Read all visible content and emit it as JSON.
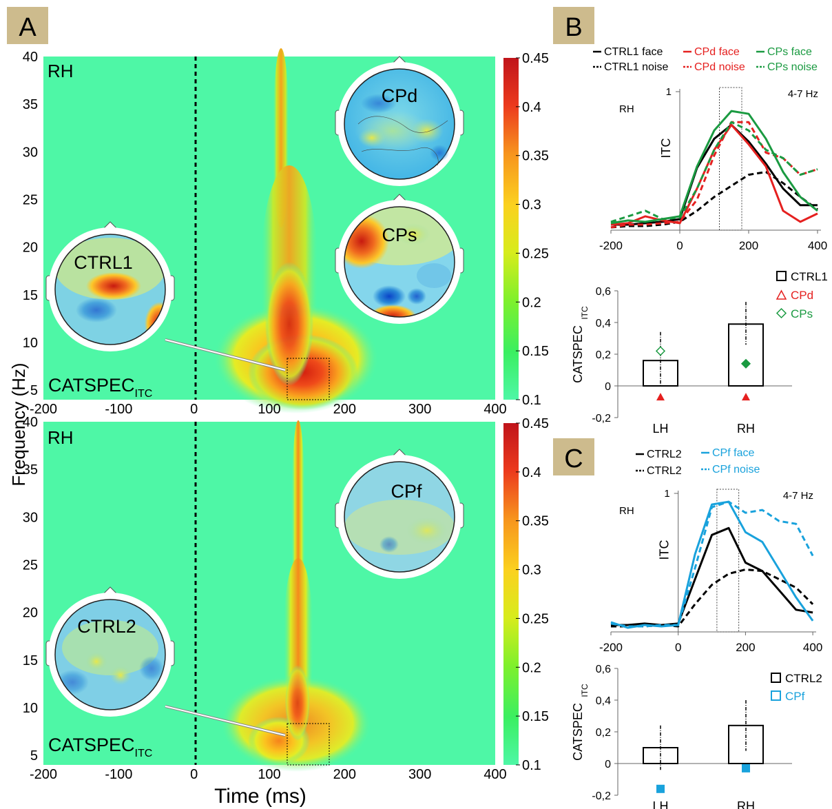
{
  "panels": {
    "a": "A",
    "b": "B",
    "c": "C"
  },
  "heatmap_axes": {
    "ylabel": "Frequency (Hz)",
    "xlabel": "Time (ms)"
  },
  "heatmap_top": {
    "hemisphere": "RH",
    "catspec": "CATSPEC",
    "catspec_sub": "ITC",
    "maps": [
      "CPd",
      "CPs",
      "CTRL1"
    ]
  },
  "heatmap_bottom": {
    "hemisphere": "RH",
    "catspec": "CATSPEC",
    "catspec_sub": "ITC",
    "maps": [
      "CPf",
      "CTRL2"
    ]
  },
  "colors": {
    "ctrl": "#000000",
    "cpd": "#e5201f",
    "cps": "#1a9a41",
    "cpf": "#19a2dc",
    "panel_bg": "#cdbb8d",
    "heat_base": "#4ef7a6"
  },
  "chart_data": [
    {
      "type": "heatmap",
      "title": "",
      "xlabel": "Time (ms)",
      "ylabel": "Frequency (Hz)",
      "xlim": [
        -200,
        400
      ],
      "ylim": [
        4,
        40
      ],
      "x_ticks": [
        -200,
        -100,
        0,
        100,
        200,
        300,
        400
      ],
      "y_ticks": [
        5,
        10,
        15,
        20,
        25,
        30,
        35,
        40
      ],
      "colorbar": {
        "range": [
          0.1,
          0.45
        ],
        "ticks": [
          "0.45",
          "0.4",
          "0.35",
          "0.3",
          "0.25",
          "0.2",
          "0.15",
          "0.1"
        ]
      },
      "stimulus_onset_ms": 0,
      "window_ms": [
        120,
        175
      ],
      "window_hz": [
        4,
        8.5
      ],
      "label": "RH"
    },
    {
      "type": "heatmap",
      "title": "",
      "xlabel": "Time (ms)",
      "ylabel": "Frequency (Hz)",
      "xlim": [
        -200,
        400
      ],
      "ylim": [
        4,
        40
      ],
      "x_ticks": [
        -200,
        -100,
        0,
        100,
        200,
        300,
        400
      ],
      "y_ticks": [
        5,
        10,
        15,
        20,
        25,
        30,
        35,
        40
      ],
      "colorbar": {
        "range": [
          0.1,
          0.45
        ],
        "ticks": [
          "0.45",
          "0.4",
          "0.35",
          "0.3",
          "0.25",
          "0.2",
          "0.15",
          "0.1"
        ]
      },
      "stimulus_onset_ms": 0,
      "window_ms": [
        120,
        175
      ],
      "window_hz": [
        4,
        8.5
      ],
      "label": "RH"
    },
    {
      "type": "line",
      "title": "4-7 Hz",
      "side_label": "RH",
      "ylabel": "ITC",
      "xlim": [
        -200,
        410
      ],
      "ylim": [
        0,
        1
      ],
      "x_ticks": [
        -200,
        0,
        200,
        400
      ],
      "y_ticks": [
        "1"
      ],
      "window_ms": [
        115,
        180
      ],
      "x": [
        -200,
        -150,
        -100,
        -50,
        0,
        50,
        100,
        150,
        200,
        250,
        300,
        350,
        400
      ],
      "series": [
        {
          "name": "CTRL1 face",
          "color": "#000000",
          "dash": false,
          "values": [
            0.04,
            0.04,
            0.05,
            0.06,
            0.08,
            0.45,
            0.66,
            0.76,
            0.64,
            0.48,
            0.3,
            0.18,
            0.18
          ]
        },
        {
          "name": "CTRL1 noise",
          "color": "#000000",
          "dash": true,
          "values": [
            0.02,
            0.03,
            0.03,
            0.04,
            0.06,
            0.14,
            0.24,
            0.32,
            0.4,
            0.42,
            0.34,
            0.24,
            0.15
          ]
        },
        {
          "name": "CPd face",
          "color": "#e5201f",
          "dash": false,
          "values": [
            0.04,
            0.05,
            0.1,
            0.07,
            0.05,
            0.3,
            0.58,
            0.76,
            0.62,
            0.46,
            0.14,
            0.06,
            0.12
          ]
        },
        {
          "name": "CPd noise",
          "color": "#e5201f",
          "dash": true,
          "values": [
            0.02,
            0.04,
            0.04,
            0.05,
            0.06,
            0.22,
            0.54,
            0.78,
            0.78,
            0.56,
            0.52,
            0.4,
            0.44
          ]
        },
        {
          "name": "CPs face",
          "color": "#1a9a41",
          "dash": false,
          "values": [
            0.05,
            0.07,
            0.06,
            0.08,
            0.1,
            0.46,
            0.72,
            0.86,
            0.84,
            0.66,
            0.42,
            0.24,
            0.14
          ]
        },
        {
          "name": "CPs noise",
          "color": "#1a9a41",
          "dash": true,
          "values": [
            0.06,
            0.1,
            0.14,
            0.08,
            0.09,
            0.3,
            0.58,
            0.78,
            0.72,
            0.58,
            0.52,
            0.4,
            0.44
          ]
        }
      ]
    },
    {
      "type": "bar",
      "ylabel": "CATSPEC",
      "ylabel_sub": "ITC",
      "ylim": [
        -0.2,
        0.6
      ],
      "y_ticks": [
        "0,6",
        "0,4",
        "0,2",
        "0",
        "-0,2"
      ],
      "categories": [
        "LH",
        "RH"
      ],
      "series": [
        {
          "name": "CTRL1",
          "color": "#000000",
          "values": [
            0.16,
            0.39
          ],
          "error_low": [
            0.0,
            0.26
          ],
          "error_high": [
            0.34,
            0.53
          ]
        },
        {
          "name": "CPd",
          "color": "#e5201f",
          "marker": "triangle",
          "values": [
            -0.07,
            -0.07
          ]
        },
        {
          "name": "CPs",
          "color": "#1a9a41",
          "marker": "diamond",
          "values": [
            0.22,
            0.14
          ],
          "filled": [
            false,
            true
          ]
        }
      ]
    },
    {
      "type": "line",
      "title": "4-7 Hz",
      "side_label": "RH",
      "ylabel": "ITC",
      "xlim": [
        -200,
        410
      ],
      "ylim": [
        0,
        1
      ],
      "x_ticks": [
        -200,
        0,
        200,
        400
      ],
      "y_ticks": [
        "1"
      ],
      "window_ms": [
        115,
        180
      ],
      "x": [
        -200,
        -150,
        -100,
        -50,
        0,
        50,
        100,
        150,
        200,
        250,
        300,
        350,
        400
      ],
      "series": [
        {
          "name": "CTRL2",
          "color": "#000000",
          "dash": false,
          "values": [
            0.05,
            0.05,
            0.06,
            0.05,
            0.06,
            0.38,
            0.7,
            0.75,
            0.5,
            0.44,
            0.3,
            0.16,
            0.14
          ]
        },
        {
          "name": "CTRL2",
          "color": "#000000",
          "dash": true,
          "values": [
            0.04,
            0.04,
            0.04,
            0.05,
            0.04,
            0.2,
            0.34,
            0.42,
            0.45,
            0.44,
            0.38,
            0.32,
            0.2
          ]
        },
        {
          "name": "CPf face",
          "color": "#19a2dc",
          "dash": false,
          "values": [
            0.07,
            0.03,
            0.05,
            0.04,
            0.05,
            0.56,
            0.92,
            0.94,
            0.72,
            0.65,
            0.45,
            0.25,
            0.08
          ]
        },
        {
          "name": "CPf noise",
          "color": "#19a2dc",
          "dash": true,
          "values": [
            0.06,
            0.04,
            0.04,
            0.05,
            0.05,
            0.46,
            0.9,
            0.94,
            0.86,
            0.88,
            0.8,
            0.78,
            0.55
          ]
        }
      ]
    },
    {
      "type": "bar",
      "ylabel": "CATSPEC",
      "ylabel_sub": "ITC",
      "ylim": [
        -0.2,
        0.6
      ],
      "y_ticks": [
        "0,6",
        "0,4",
        "0,2",
        "0",
        "-0,2"
      ],
      "categories": [
        "LH",
        "RH"
      ],
      "series": [
        {
          "name": "CTRL2",
          "color": "#000000",
          "values": [
            0.1,
            0.24
          ],
          "error_low": [
            -0.04,
            0.08
          ],
          "error_high": [
            0.24,
            0.4
          ]
        },
        {
          "name": "CPf",
          "color": "#19a2dc",
          "marker": "square",
          "values": [
            -0.16,
            -0.03
          ]
        }
      ]
    }
  ]
}
